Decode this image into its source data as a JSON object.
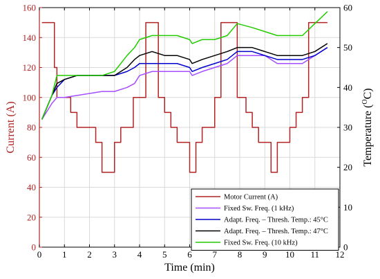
{
  "chart_data": {
    "type": "line",
    "xlabel": "Time (min)",
    "ylabel_left": "Current (A)",
    "ylabel_right": "Temperature (",
    "ylabel_right_sup": "O",
    "ylabel_right_end": "C)",
    "xlim": [
      0,
      12
    ],
    "ylim_left": [
      0,
      160
    ],
    "ylim_right": [
      0,
      60
    ],
    "xticks": [
      "0",
      "1",
      "2",
      "3",
      "4",
      "5",
      "6",
      "7",
      "8",
      "9",
      "10",
      "11",
      "12"
    ],
    "yticks_left": [
      "0",
      "20",
      "40",
      "60",
      "80",
      "100",
      "120",
      "140",
      "160"
    ],
    "yticks_right": [
      "0",
      "10",
      "20",
      "30",
      "40",
      "50",
      "60"
    ],
    "grid": true,
    "legend_position": "bottom-right",
    "colors": {
      "motor_current": "#b22222",
      "fixed_1khz": "#a64dff",
      "adapt_45": "#0000cc",
      "adapt_47": "#000000",
      "fixed_10khz": "#22cc00",
      "grid": "#d9d9d9",
      "left_axis": "#b22222"
    },
    "series": [
      {
        "name": "Motor Current (A)",
        "key": "motor_current",
        "axis": "left",
        "x": [
          0.1,
          0.6,
          0.6,
          0.7,
          0.7,
          1.0,
          1.0,
          1.25,
          1.25,
          1.5,
          1.5,
          1.75,
          1.75,
          2.25,
          2.25,
          2.5,
          2.5,
          3.0,
          3.0,
          3.25,
          3.25,
          3.75,
          3.75,
          4.25,
          4.25,
          4.75,
          4.75,
          5.0,
          5.0,
          5.25,
          5.25,
          5.5,
          5.5,
          6.0,
          6.0,
          6.25,
          6.25,
          6.5,
          6.5,
          7.0,
          7.0,
          7.25,
          7.25,
          7.45,
          7.45,
          7.9,
          7.9,
          8.25,
          8.25,
          8.5,
          8.5,
          8.75,
          8.75,
          9.25,
          9.25,
          9.5,
          9.5,
          10.0,
          10.0,
          10.25,
          10.25,
          10.5,
          10.5,
          10.75,
          10.75,
          11.5
        ],
        "y": [
          150,
          150,
          120,
          120,
          100,
          100,
          100,
          100,
          90,
          90,
          80,
          80,
          80,
          80,
          70,
          70,
          50,
          50,
          70,
          70,
          80,
          80,
          100,
          100,
          150,
          150,
          100,
          100,
          90,
          90,
          80,
          80,
          70,
          70,
          50,
          50,
          70,
          70,
          80,
          80,
          100,
          100,
          150,
          150,
          150,
          150,
          100,
          100,
          90,
          90,
          80,
          80,
          70,
          70,
          50,
          50,
          70,
          70,
          80,
          80,
          90,
          90,
          100,
          100,
          150,
          150
        ]
      },
      {
        "name": "Fixed Sw. Freq. (1 kHz)",
        "key": "fixed_1khz",
        "axis": "right",
        "x": [
          0.1,
          0.3,
          0.5,
          0.7,
          1.0,
          1.5,
          2.0,
          2.5,
          3.0,
          3.5,
          3.8,
          4.0,
          4.5,
          5.0,
          5.5,
          6.0,
          6.1,
          6.5,
          7.0,
          7.5,
          7.9,
          8.5,
          9.0,
          9.5,
          10.0,
          10.5,
          11.0,
          11.5
        ],
        "y": [
          32,
          34,
          36,
          37.5,
          37.5,
          38,
          38.5,
          39,
          39,
          40,
          41,
          43,
          44,
          44,
          44,
          44,
          43,
          44,
          45,
          46,
          48,
          48,
          48,
          46,
          46,
          46,
          48,
          50
        ]
      },
      {
        "name": "Adapt. Freq. – Thresh. Temp.: 45°C",
        "key": "adapt_45",
        "axis": "right",
        "x": [
          0.1,
          0.3,
          0.5,
          0.7,
          1.0,
          1.5,
          2.0,
          2.5,
          3.0,
          3.5,
          3.8,
          4.0,
          4.5,
          5.0,
          5.5,
          6.0,
          6.1,
          6.5,
          7.0,
          7.5,
          7.9,
          8.5,
          9.0,
          9.5,
          10.0,
          10.5,
          11.0,
          11.5
        ],
        "y": [
          32,
          35,
          38,
          40,
          42,
          43,
          43,
          43,
          43,
          44,
          45,
          46,
          46,
          46,
          46,
          45,
          44,
          45,
          46,
          47,
          49,
          49,
          48,
          47,
          47,
          47,
          48,
          50
        ]
      },
      {
        "name": "Adapt. Freq. – Thresh. Temp.: 47°C",
        "key": "adapt_47",
        "axis": "right",
        "x": [
          0.1,
          0.3,
          0.5,
          0.7,
          1.0,
          1.5,
          2.0,
          2.5,
          3.0,
          3.5,
          3.8,
          4.0,
          4.5,
          5.0,
          5.5,
          6.0,
          6.1,
          6.5,
          7.0,
          7.5,
          7.9,
          8.5,
          9.0,
          9.5,
          10.0,
          10.5,
          11.0,
          11.5
        ],
        "y": [
          32,
          35,
          38,
          41,
          42,
          43,
          43,
          43,
          43,
          45,
          47,
          48,
          49,
          48,
          48,
          47,
          46,
          47,
          48,
          49,
          50,
          50,
          49,
          48,
          48,
          48,
          49,
          51
        ]
      },
      {
        "name": "Fixed Sw. Freq. (10 kHz)",
        "key": "fixed_10khz",
        "axis": "right",
        "x": [
          0.1,
          0.3,
          0.5,
          0.7,
          1.0,
          1.5,
          2.0,
          2.5,
          3.0,
          3.5,
          3.8,
          4.0,
          4.5,
          5.0,
          5.5,
          6.0,
          6.1,
          6.5,
          7.0,
          7.5,
          7.9,
          8.5,
          9.0,
          9.5,
          10.0,
          10.5,
          11.0,
          11.5
        ],
        "y": [
          32,
          35,
          38,
          43,
          43,
          43,
          43,
          43,
          44,
          48,
          50,
          52,
          53,
          53,
          53,
          52,
          51,
          52,
          52,
          53,
          56,
          55,
          54,
          53,
          53,
          53,
          56,
          59
        ]
      }
    ]
  }
}
